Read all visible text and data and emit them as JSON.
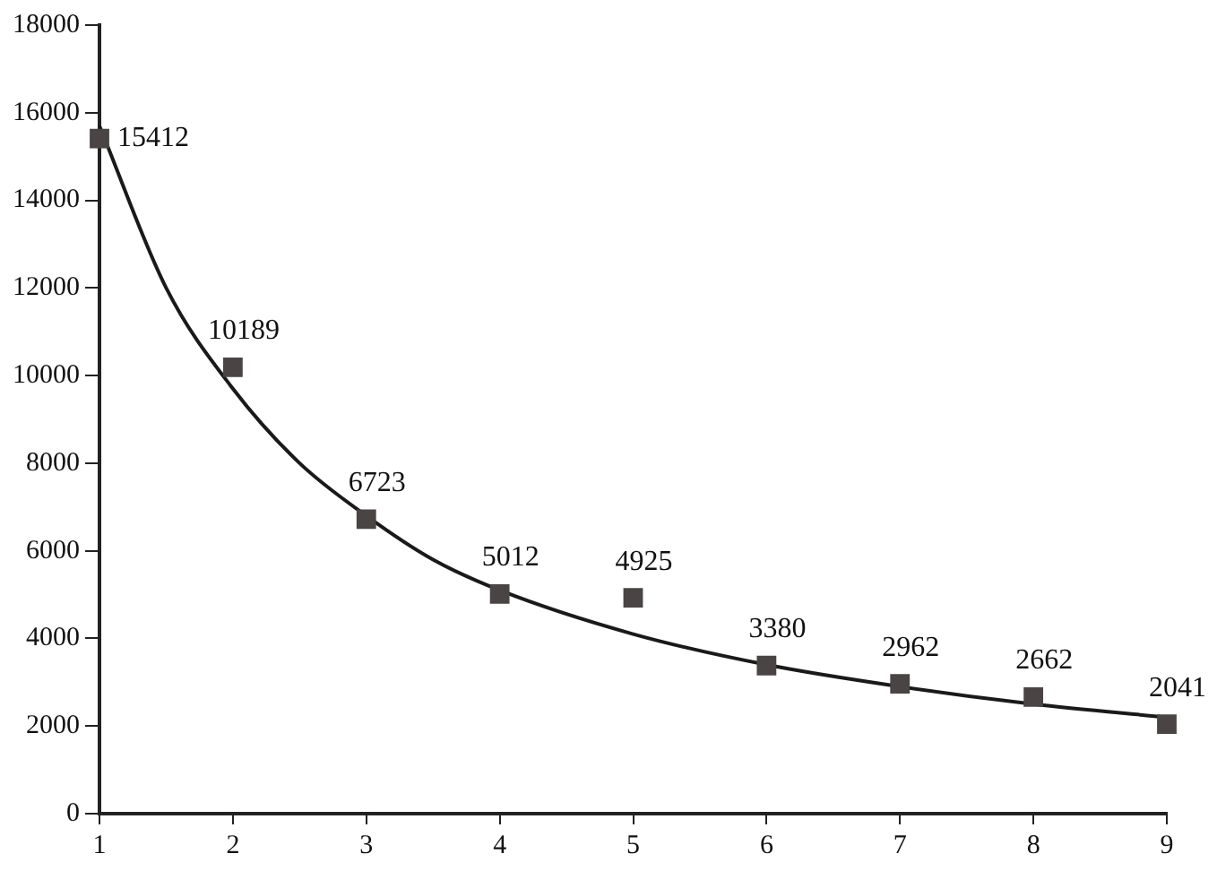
{
  "chart_data": {
    "type": "scatter",
    "x": [
      1,
      2,
      3,
      4,
      5,
      6,
      7,
      8,
      9
    ],
    "xlim": [
      1,
      9
    ],
    "xticks": [
      1,
      2,
      3,
      4,
      5,
      6,
      7,
      8,
      9
    ],
    "ylim": [
      0,
      18000
    ],
    "yticks": [
      0,
      2000,
      4000,
      6000,
      8000,
      10000,
      12000,
      14000,
      16000,
      18000
    ],
    "grid": false,
    "legend": false,
    "marker": "square",
    "series": [
      {
        "color": "#4a4444",
        "values": [
          15412,
          10189,
          6723,
          5012,
          4925,
          3380,
          2962,
          2662,
          2041
        ],
        "value_labels": [
          "15412",
          "10189",
          "6723",
          "5012",
          "4925",
          "3380",
          "2962",
          "2662",
          "2041"
        ]
      },
      {
        "type": "line",
        "color": "#1a1a1a",
        "marker": "none",
        "line_style": "solid",
        "x": [
          1,
          1.5,
          2,
          2.5,
          3,
          3.5,
          4,
          5,
          6,
          7,
          8,
          9
        ],
        "values": [
          15700,
          12000,
          9700,
          8000,
          6800,
          5800,
          5100,
          4100,
          3400,
          2900,
          2500,
          2200
        ]
      }
    ]
  }
}
